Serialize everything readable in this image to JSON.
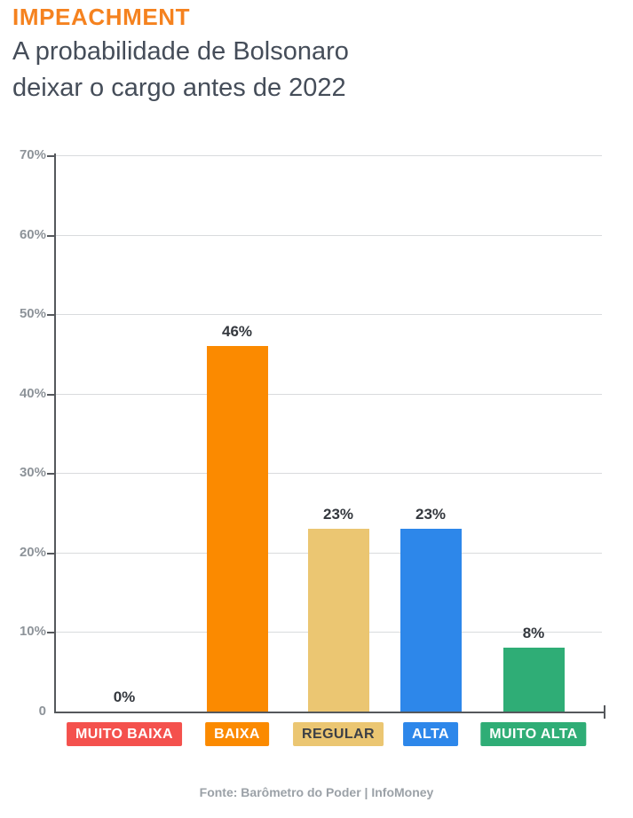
{
  "header": {
    "kicker": "IMPEACHMENT",
    "title_line1": "A probabilidade de Bolsonaro",
    "title_line2": "deixar o cargo antes de 2022"
  },
  "footer": {
    "source": "Fonte: Barômetro do Poder | InfoMoney"
  },
  "colors": {
    "kicker_orange": "#F5821F",
    "title_text": "#454D59",
    "axis": "#55585C",
    "gridline": "#D9DBDD",
    "ytick_label": "#8D9399",
    "value_label": "#34383E",
    "source_text": "#9BA1A7"
  },
  "chart_data": {
    "type": "bar",
    "title": "IMPEACHMENT — A probabilidade de Bolsonaro deixar o cargo antes de 2022",
    "categories": [
      "MUITO BAIXA",
      "BAIXA",
      "REGULAR",
      "ALTA",
      "MUITO ALTA"
    ],
    "values": [
      0,
      46,
      23,
      23,
      8
    ],
    "value_labels": [
      "0%",
      "46%",
      "23%",
      "23%",
      "8%"
    ],
    "bar_colors": [
      "#F4514D",
      "#FB8A00",
      "#EBC672",
      "#2D87EA",
      "#2FAD76"
    ],
    "category_text_colors": [
      "#FFFFFF",
      "#FFFFFF",
      "#3B3F46",
      "#FFFFFF",
      "#FFFFFF"
    ],
    "xlabel": "",
    "ylabel": "",
    "ylim": [
      0,
      70
    ],
    "yticks": [
      0,
      10,
      20,
      30,
      40,
      50,
      60,
      70
    ],
    "ytick_labels": [
      "0",
      "10%",
      "20%",
      "30%",
      "40%",
      "50%",
      "60%",
      "70%"
    ],
    "grid": true,
    "legend": false,
    "source": "Fonte: Barômetro do Poder | InfoMoney"
  }
}
